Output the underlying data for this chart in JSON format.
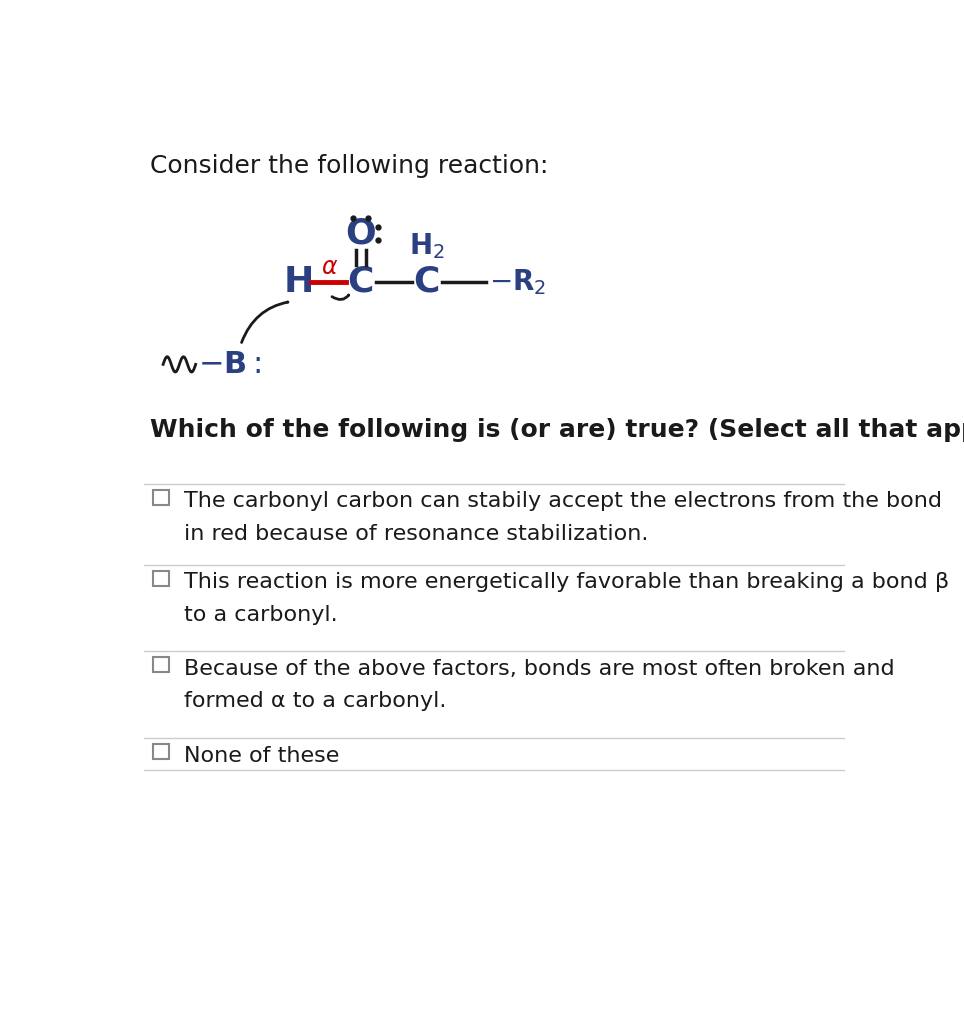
{
  "title": "Consider the following reaction:",
  "title_fontsize": 18,
  "question": "Which of the following is (or are) true? (Select all that apply.)",
  "question_fontsize": 18,
  "options": [
    {
      "line1": "The carbonyl carbon can stabily accept the electrons from the bond",
      "line2": "in red because of resonance stabilization."
    },
    {
      "line1": "This reaction is more energetically favorable than breaking a bond β",
      "line2": "to a carbonyl."
    },
    {
      "line1": "Because of the above factors, bonds are most often broken and",
      "line2": "formed α to a carbonyl."
    },
    {
      "line1": "None of these",
      "line2": ""
    }
  ],
  "option_fontsize": 16,
  "bg_color": "#ffffff",
  "text_color": "#1a1a1a",
  "line_color": "#cccccc",
  "checkbox_color": "#888888",
  "red_color": "#cc0000",
  "mol_text_color": "#2a4080",
  "bond_color": "#1a1a1a",
  "dot_color": "#1a1a1a",
  "arrow_color": "#1a1a1a"
}
